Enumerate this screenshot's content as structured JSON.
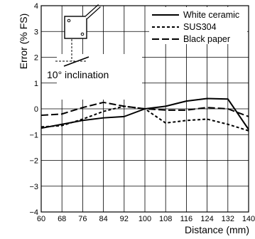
{
  "chart_data": {
    "type": "line",
    "xlabel": "Distance (mm)",
    "ylabel": "Error (% FS)",
    "xlim": [
      60,
      140
    ],
    "ylim": [
      -4,
      4
    ],
    "xticks": [
      60,
      68,
      76,
      84,
      92,
      100,
      108,
      116,
      124,
      132,
      140
    ],
    "yticks": [
      -4,
      -3,
      -2,
      -1,
      0,
      1,
      2,
      3,
      4
    ],
    "xtick_labels": [
      "60",
      "68",
      "76",
      "84",
      "92",
      "100",
      "108",
      "116",
      "124",
      "132",
      "140"
    ],
    "ytick_labels": [
      "−4",
      "−3",
      "−2",
      "−1",
      "0",
      "1",
      "2",
      "3",
      "4"
    ],
    "grid": true,
    "legend_position": "top-right",
    "annotation": "10° inclination",
    "series": [
      {
        "name": "White ceramic",
        "style": "solid",
        "x": [
          60,
          68,
          76,
          84,
          92,
          100,
          108,
          116,
          124,
          132,
          140
        ],
        "y": [
          -0.75,
          -0.6,
          -0.45,
          -0.35,
          -0.3,
          0.0,
          0.1,
          0.3,
          0.4,
          0.38,
          -0.8
        ]
      },
      {
        "name": "SUS304",
        "style": "short-dash",
        "x": [
          60,
          68,
          76,
          84,
          92,
          100,
          108,
          116,
          124,
          132,
          140
        ],
        "y": [
          -0.7,
          -0.65,
          -0.4,
          -0.1,
          0.1,
          0.0,
          -0.55,
          -0.45,
          -0.4,
          -0.6,
          -0.85
        ]
      },
      {
        "name": "Black paper",
        "style": "long-dash",
        "x": [
          60,
          68,
          76,
          84,
          92,
          100,
          108,
          116,
          124,
          132,
          140
        ],
        "y": [
          -0.25,
          -0.2,
          0.05,
          0.25,
          0.1,
          0.0,
          -0.05,
          -0.05,
          0.05,
          0.0,
          -0.3
        ]
      }
    ]
  }
}
